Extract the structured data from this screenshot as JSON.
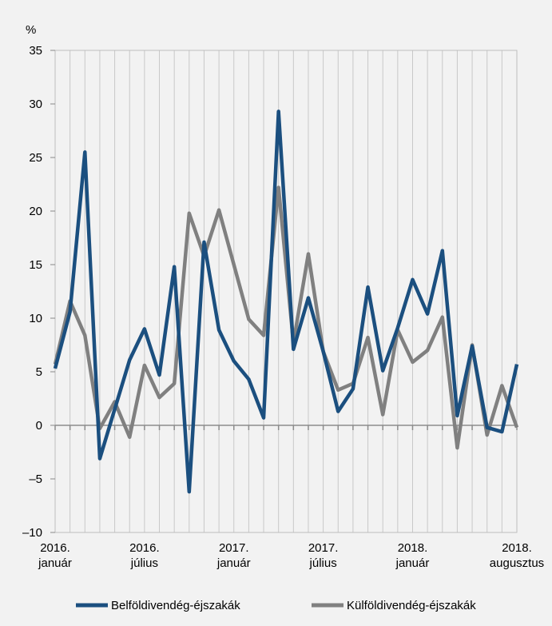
{
  "chart_data": {
    "type": "line",
    "y_label": "%",
    "categories": [
      "2016. január",
      null,
      null,
      null,
      null,
      null,
      "2016. július",
      null,
      null,
      null,
      null,
      null,
      "2017. január",
      null,
      null,
      null,
      null,
      null,
      "2017. július",
      null,
      null,
      null,
      null,
      null,
      "2018. január",
      null,
      null,
      null,
      null,
      null,
      null,
      "2018. augusztus"
    ],
    "series": [
      {
        "name": "Belföldivendég-éjszakák",
        "color": "#1b4f7f",
        "values": [
          5.3,
          10.6,
          25.5,
          -3.1,
          1.5,
          6.1,
          9.0,
          4.7,
          14.8,
          -6.2,
          17.1,
          8.9,
          6.0,
          4.3,
          0.7,
          29.3,
          7.1,
          11.9,
          6.9,
          1.3,
          3.4,
          12.9,
          5.1,
          9.1,
          13.6,
          10.4,
          16.3,
          0.9,
          7.4,
          -0.2,
          -0.6,
          5.7
        ]
      },
      {
        "name": "Külföldivendég-éjszakák",
        "color": "#808080",
        "values": [
          5.7,
          11.6,
          8.4,
          -0.3,
          2.2,
          -1.1,
          5.6,
          2.6,
          3.9,
          19.8,
          15.8,
          20.1,
          15.0,
          9.9,
          8.4,
          22.2,
          7.7,
          16.0,
          6.9,
          3.3,
          3.9,
          8.2,
          1.0,
          8.9,
          5.9,
          7.0,
          10.1,
          -2.1,
          7.5,
          -0.9,
          3.7,
          -0.2
        ]
      }
    ],
    "ylim": [
      -10,
      35
    ],
    "yticks": [
      {
        "value": -10,
        "label": "–10"
      },
      {
        "value": -5,
        "label": "–5"
      },
      0,
      5,
      10,
      15,
      20,
      25,
      30,
      35
    ],
    "grid": true
  }
}
